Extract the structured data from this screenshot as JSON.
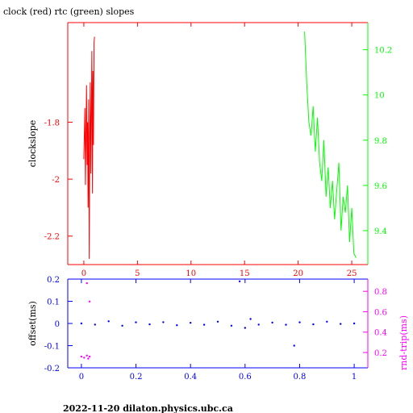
{
  "chart_data": [
    {
      "type": "line",
      "title": "clock (red) rtc (green) slopes",
      "xlabel": "",
      "ylabel": "clockslope",
      "ylabel_right": "",
      "xlim": [
        -1.5,
        26.5
      ],
      "ylim": [
        -2.3,
        -1.45
      ],
      "ylim_right": [
        9.25,
        10.32
      ],
      "x_ticks": [
        0,
        5,
        10,
        15,
        20,
        25
      ],
      "x_tick_labels": [
        "0",
        "5",
        "10",
        "15",
        "20",
        "25"
      ],
      "y_ticks": [
        -1.8,
        -2,
        -2.2
      ],
      "y_tick_labels": [
        "-1.8",
        "-2",
        "-2.2"
      ],
      "y_ticks_right": [
        9.4,
        9.6,
        9.8,
        10,
        10.2
      ],
      "y_tick_labels_right": [
        "9.4",
        "9.6",
        "9.8",
        "10",
        "10.2"
      ],
      "series": [
        {
          "color": "#ff0000",
          "axis": "left",
          "x": [
            0.0,
            0.1,
            0.15,
            0.2,
            0.25,
            0.3,
            0.35,
            0.4,
            0.45,
            0.5,
            0.55,
            0.6,
            0.65,
            0.7,
            0.75,
            0.8,
            0.85,
            0.9,
            0.95,
            1.0
          ],
          "y": [
            -1.93,
            -1.75,
            -2.02,
            -1.85,
            -1.67,
            -1.95,
            -1.8,
            -2.1,
            -1.72,
            -2.28,
            -1.9,
            -1.66,
            -1.98,
            -1.78,
            -1.55,
            -2.05,
            -1.62,
            -1.88,
            -1.52,
            -1.5
          ]
        },
        {
          "color": "#00ff00",
          "axis": "right",
          "x": [
            20.6,
            20.8,
            21.0,
            21.2,
            21.4,
            21.6,
            21.8,
            22.0,
            22.2,
            22.4,
            22.6,
            22.8,
            23.0,
            23.2,
            23.4,
            23.6,
            23.8,
            24.0,
            24.2,
            24.4,
            24.6,
            24.8,
            25.0,
            25.2,
            25.4
          ],
          "y": [
            10.28,
            10.05,
            9.88,
            9.82,
            9.95,
            9.75,
            9.9,
            9.7,
            9.62,
            9.8,
            9.55,
            9.68,
            9.5,
            9.62,
            9.45,
            9.58,
            9.7,
            9.4,
            9.55,
            9.48,
            9.6,
            9.35,
            9.5,
            9.3,
            9.28
          ]
        }
      ]
    },
    {
      "type": "scatter",
      "xlabel": "",
      "ylabel": "offset(ms)",
      "ylabel_right": "rnd-trip(ms)",
      "xlim": [
        -0.05,
        1.05
      ],
      "ylim": [
        -0.2,
        0.2
      ],
      "ylim_right": [
        0.05,
        0.92
      ],
      "x_ticks": [
        0,
        0.2,
        0.4,
        0.6,
        0.8,
        1
      ],
      "x_tick_labels": [
        "0",
        "0.2",
        "0.4",
        "0.6",
        "0.8",
        "1"
      ],
      "y_ticks": [
        0.2,
        0.1,
        0,
        -0.1,
        -0.2
      ],
      "y_tick_labels": [
        "0.2",
        "0.1",
        "0",
        "-0.1",
        "-0.2"
      ],
      "y_ticks_right": [
        0.2,
        0.4,
        0.6,
        0.8
      ],
      "y_tick_labels_right": [
        "0.2",
        "0.4",
        "0.6",
        "0.8"
      ],
      "series": [
        {
          "color": "#0000ff",
          "axis": "left",
          "points_x": [
            0.0,
            0.05,
            0.1,
            0.15,
            0.2,
            0.25,
            0.3,
            0.35,
            0.4,
            0.45,
            0.5,
            0.55,
            0.58,
            0.6,
            0.62,
            0.65,
            0.7,
            0.75,
            0.78,
            0.8,
            0.85,
            0.9,
            0.95,
            1.0
          ],
          "points_y": [
            0.0,
            -0.005,
            0.01,
            -0.01,
            0.005,
            -0.004,
            0.006,
            -0.008,
            0.003,
            -0.006,
            0.008,
            -0.01,
            0.19,
            -0.02,
            0.02,
            -0.005,
            0.004,
            -0.006,
            -0.1,
            0.005,
            -0.004,
            0.008,
            -0.002,
            0.0
          ]
        },
        {
          "color": "#ff00ff",
          "axis": "right",
          "points_x": [
            0.0,
            0.01,
            0.02,
            0.025,
            0.03,
            0.02,
            0.03
          ],
          "points_y": [
            0.16,
            0.15,
            0.17,
            0.14,
            0.16,
            0.88,
            0.7
          ]
        }
      ]
    }
  ],
  "footer": "2022-11-20  dilaton.physics.ubc.ca"
}
